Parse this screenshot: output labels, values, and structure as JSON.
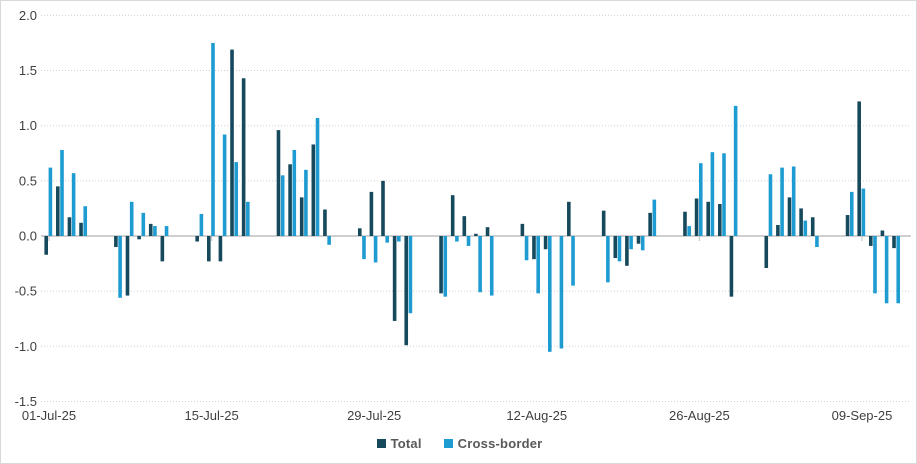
{
  "chart_data": {
    "type": "bar",
    "title": "",
    "xlabel": "",
    "ylabel": "",
    "ylim": [
      -1.5,
      2.0
    ],
    "grid": true,
    "legend_position": "bottom-center",
    "y_ticks": [
      2.0,
      1.5,
      1.0,
      0.5,
      0.0,
      -0.5,
      -1.0,
      -1.5
    ],
    "y_tick_labels": [
      "2.0",
      "1.5",
      "1.0",
      "0.5",
      "0.0",
      "-0.5",
      "-1.0",
      "-1.5"
    ],
    "x_tick_labels": [
      "01-Jul-25",
      "15-Jul-25",
      "29-Jul-25",
      "12-Aug-25",
      "26-Aug-25",
      "09-Sep-25"
    ],
    "categories": [
      "01-Jul-25",
      "02-Jul-25",
      "03-Jul-25",
      "04-Jul-25",
      "07-Jul-25",
      "08-Jul-25",
      "09-Jul-25",
      "10-Jul-25",
      "11-Jul-25",
      "14-Jul-25",
      "15-Jul-25",
      "16-Jul-25",
      "17-Jul-25",
      "18-Jul-25",
      "21-Jul-25",
      "22-Jul-25",
      "23-Jul-25",
      "24-Jul-25",
      "25-Jul-25",
      "28-Jul-25",
      "29-Jul-25",
      "30-Jul-25",
      "31-Jul-25",
      "01-Aug-25",
      "04-Aug-25",
      "05-Aug-25",
      "06-Aug-25",
      "07-Aug-25",
      "08-Aug-25",
      "11-Aug-25",
      "12-Aug-25",
      "13-Aug-25",
      "14-Aug-25",
      "15-Aug-25",
      "18-Aug-25",
      "19-Aug-25",
      "20-Aug-25",
      "21-Aug-25",
      "22-Aug-25",
      "25-Aug-25",
      "26-Aug-25",
      "27-Aug-25",
      "28-Aug-25",
      "29-Aug-25",
      "01-Sep-25",
      "02-Sep-25",
      "03-Sep-25",
      "04-Sep-25",
      "05-Sep-25",
      "08-Sep-25",
      "09-Sep-25",
      "10-Sep-25",
      "11-Sep-25",
      "12-Sep-25"
    ],
    "series": [
      {
        "name": "Total",
        "color": "#17495c",
        "values": [
          -0.17,
          0.45,
          0.17,
          0.12,
          -0.1,
          -0.54,
          -0.03,
          0.11,
          -0.23,
          -0.05,
          -0.23,
          -0.23,
          1.69,
          1.43,
          0.96,
          0.65,
          0.35,
          0.83,
          0.24,
          0.07,
          0.4,
          0.5,
          -0.77,
          -0.99,
          -0.52,
          0.37,
          0.18,
          0.02,
          0.08,
          0.11,
          -0.21,
          -0.12,
          0.0,
          0.31,
          0.23,
          -0.2,
          -0.27,
          -0.07,
          0.21,
          0.22,
          0.34,
          0.31,
          0.29,
          -0.55,
          -0.29,
          0.1,
          0.35,
          0.25,
          0.17,
          0.19,
          1.22,
          -0.09,
          0.05,
          -0.11
        ]
      },
      {
        "name": "Cross-border",
        "color": "#1e9cd2",
        "values": [
          0.62,
          0.78,
          0.57,
          0.27,
          -0.56,
          0.31,
          0.21,
          0.09,
          0.09,
          0.2,
          1.75,
          0.92,
          0.67,
          0.31,
          0.55,
          0.78,
          0.6,
          1.07,
          -0.08,
          -0.21,
          -0.24,
          -0.06,
          -0.05,
          -0.7,
          -0.55,
          -0.05,
          -0.09,
          -0.51,
          -0.54,
          -0.22,
          -0.52,
          -1.05,
          -1.02,
          -0.45,
          -0.42,
          -0.23,
          -0.12,
          -0.13,
          0.33,
          0.09,
          0.66,
          0.76,
          0.75,
          1.18,
          0.56,
          0.62,
          0.63,
          0.14,
          -0.1,
          0.4,
          0.43,
          -0.52,
          -0.61,
          -0.61
        ]
      }
    ],
    "style": {
      "grid_color": "#d0d0d0",
      "zero_axis_color": "#bfbfbf",
      "tick_color": "#bfbfbf",
      "axis_text_color": "#404040"
    }
  },
  "legend": {
    "items": [
      {
        "label": "Total",
        "color": "#17495c"
      },
      {
        "label": "Cross-border",
        "color": "#1e9cd2"
      }
    ]
  }
}
